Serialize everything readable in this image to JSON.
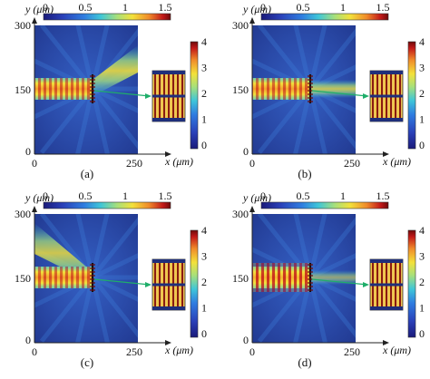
{
  "figure": {
    "panels": [
      {
        "id": "a",
        "label": "(a)",
        "top_colorbar_ticks": [
          "0",
          "0.5",
          "1",
          "1.5"
        ],
        "y_axis": {
          "label": "y (μm)",
          "ticks": [
            "300",
            "150",
            "0"
          ]
        },
        "x_axis": {
          "label": "x (μm)",
          "ticks": [
            "0",
            "250"
          ]
        },
        "side_colorbar_ticks": [
          "4",
          "3",
          "2",
          "1",
          "0"
        ],
        "beam_out": "upward-right"
      },
      {
        "id": "b",
        "label": "(b)",
        "top_colorbar_ticks": [
          "0",
          "0.5",
          "1",
          "1.5"
        ],
        "y_axis": {
          "label": "y (μm)",
          "ticks": [
            "300",
            "150",
            "0"
          ]
        },
        "x_axis": {
          "label": "x (μm)",
          "ticks": [
            "0",
            "250"
          ]
        },
        "side_colorbar_ticks": [
          "4",
          "3",
          "2",
          "1",
          "0"
        ],
        "beam_out": "straight"
      },
      {
        "id": "c",
        "label": "(c)",
        "top_colorbar_ticks": [
          "0",
          "0.5",
          "1",
          "1.5"
        ],
        "y_axis": {
          "label": "y (μm)",
          "ticks": [
            "300",
            "150",
            "0"
          ]
        },
        "x_axis": {
          "label": "x (μm)",
          "ticks": [
            "0",
            "250"
          ]
        },
        "side_colorbar_ticks": [
          "4",
          "3",
          "2",
          "1",
          "0"
        ],
        "beam_out": "reflected-upward-left"
      },
      {
        "id": "d",
        "label": "(d)",
        "top_colorbar_ticks": [
          "0",
          "0.5",
          "1",
          "1.5"
        ],
        "y_axis": {
          "label": "y (μm)",
          "ticks": [
            "300",
            "150",
            "0"
          ]
        },
        "x_axis": {
          "label": "x (μm)",
          "ticks": [
            "0",
            "250"
          ]
        },
        "side_colorbar_ticks": [
          "4",
          "3",
          "2",
          "1",
          "0"
        ],
        "beam_out": "straight-fringes"
      }
    ],
    "colors": {
      "field_background": "#2a4aa8",
      "arrow": "#1fae6a",
      "colormap": [
        "#1a1a7a",
        "#2a40b8",
        "#2f7de0",
        "#3fc6d8",
        "#a8e07a",
        "#f3e13a",
        "#f08a2a",
        "#c21818",
        "#6e0a0a"
      ]
    }
  }
}
